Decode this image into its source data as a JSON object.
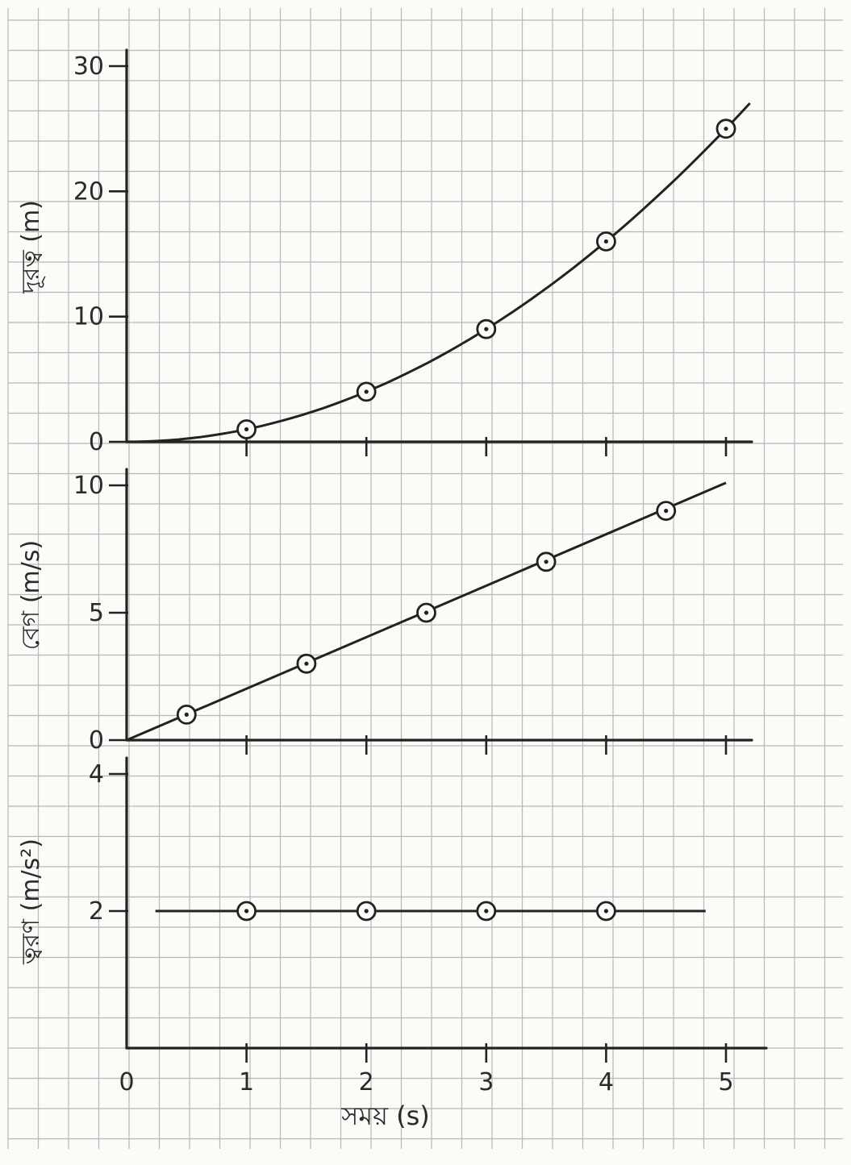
{
  "style": {
    "paper": "#fbfbf8",
    "grid": "#b7b7b7",
    "ink": "#222222"
  },
  "chart_data": [
    {
      "type": "scatter",
      "title": "",
      "ylabel": "দূরত্ব (m)",
      "xlim": [
        0,
        5
      ],
      "ylim": [
        0,
        30
      ],
      "y_ticks": [
        "0",
        "10",
        "20",
        "30"
      ],
      "x_ticks": [
        "1",
        "2",
        "3",
        "4",
        "5"
      ],
      "grid": true,
      "series": [
        {
          "points": [
            [
              1,
              1
            ],
            [
              2,
              4
            ],
            [
              3,
              9
            ],
            [
              4,
              16
            ],
            [
              5,
              25
            ]
          ],
          "line": "curve"
        }
      ]
    },
    {
      "type": "scatter",
      "title": "",
      "ylabel": "বেগ (m/s)",
      "xlim": [
        0,
        5
      ],
      "ylim": [
        0,
        10
      ],
      "y_ticks": [
        "0",
        "5",
        "10"
      ],
      "x_ticks": [
        "1",
        "2",
        "3",
        "4",
        "5"
      ],
      "grid": true,
      "series": [
        {
          "points": [
            [
              0.5,
              1
            ],
            [
              1.5,
              3
            ],
            [
              2.5,
              5
            ],
            [
              3.5,
              7
            ],
            [
              4.5,
              9
            ]
          ],
          "line": "straight"
        }
      ]
    },
    {
      "type": "scatter",
      "title": "",
      "ylabel": "ত্বরণ (m/s²)",
      "xlabel": "সময় (s)",
      "xlim": [
        0,
        5
      ],
      "ylim": [
        0,
        4
      ],
      "y_ticks": [
        "2",
        "4"
      ],
      "x_ticks": [
        "0",
        "1",
        "2",
        "3",
        "4",
        "5"
      ],
      "grid": true,
      "series": [
        {
          "points": [
            [
              1,
              2
            ],
            [
              2,
              2
            ],
            [
              3,
              2
            ],
            [
              4,
              2
            ]
          ],
          "line": "horizontal"
        }
      ]
    }
  ]
}
